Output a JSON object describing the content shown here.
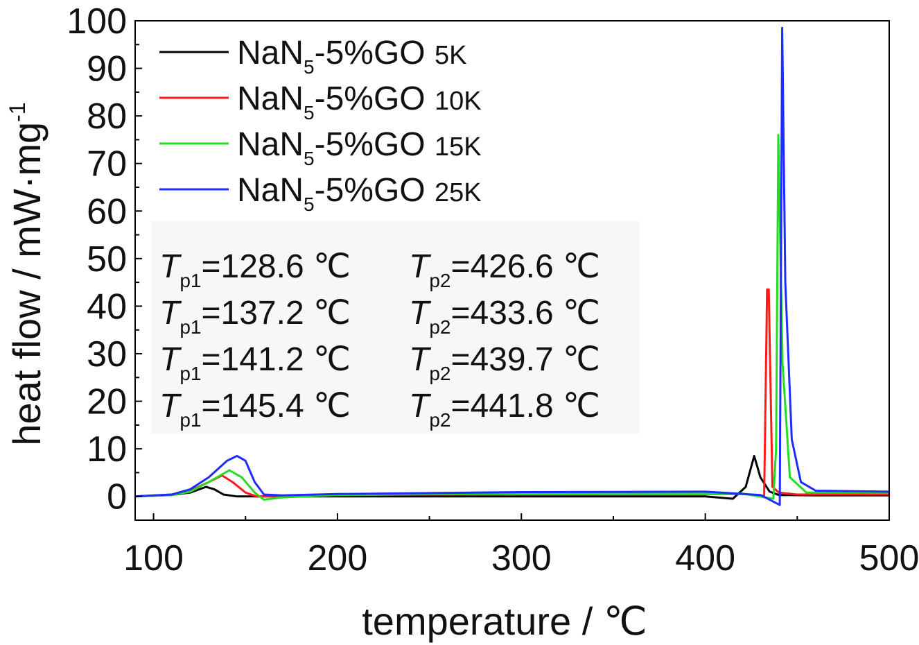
{
  "chart_data": {
    "type": "line",
    "title": "",
    "xlabel": "temperature / ℃",
    "ylabel_main": "heat flow / mW·mg",
    "ylabel_sup": "-1",
    "xlim": [
      90,
      500
    ],
    "ylim": [
      -5,
      100
    ],
    "xticks": [
      100,
      200,
      300,
      400,
      500
    ],
    "yticks": [
      0,
      10,
      20,
      30,
      40,
      50,
      60,
      70,
      80,
      90,
      100
    ],
    "grid": false,
    "legend_position": "top-left",
    "series": [
      {
        "name": "NaN5-5%GO 5K",
        "legend_base": "NaN",
        "legend_sub": "5",
        "legend_rest": "-5%GO",
        "legend_rate": "5K",
        "color": "#000000",
        "x": [
          90,
          110,
          120,
          128.6,
          133,
          138,
          145,
          160,
          200,
          300,
          400,
          415,
          422,
          426.6,
          430,
          435,
          440,
          460,
          500
        ],
        "y": [
          0,
          0.3,
          0.8,
          2.0,
          1.5,
          0.4,
          0,
          0,
          0,
          0,
          0,
          -0.5,
          2.0,
          8.5,
          4.0,
          1.0,
          0.3,
          0.2,
          0.2
        ]
      },
      {
        "name": "NaN5-5%GO 10K",
        "legend_base": "NaN",
        "legend_sub": "5",
        "legend_rest": "-5%GO",
        "legend_rate": "10K",
        "color": "#ff1a1a",
        "x": [
          90,
          110,
          120,
          130,
          137.2,
          143,
          150,
          156,
          170,
          200,
          300,
          420,
          432,
          433.6,
          434.5,
          436.5,
          440,
          450,
          500
        ],
        "y": [
          0,
          0.4,
          1.2,
          3.0,
          4.4,
          3.0,
          0.8,
          0,
          0.1,
          0.3,
          0.5,
          0.5,
          0.1,
          43.5,
          43.5,
          2.0,
          0.8,
          0.4,
          0.4
        ]
      },
      {
        "name": "NaN5-5%GO 15K",
        "legend_base": "NaN",
        "legend_sub": "5",
        "legend_rest": "-5%GO",
        "legend_rate": "15K",
        "color": "#22dd22",
        "x": [
          90,
          110,
          120,
          130,
          141.2,
          148,
          155,
          160,
          170,
          200,
          300,
          420,
          437,
          438.5,
          439.7,
          442,
          446,
          455,
          500
        ],
        "y": [
          0,
          0.3,
          1.0,
          3.0,
          5.5,
          4.0,
          0.8,
          -0.7,
          -0.2,
          0.3,
          0.6,
          0.6,
          -0.5,
          10.0,
          76.0,
          28.0,
          4.0,
          0.8,
          0.8
        ]
      },
      {
        "name": "NaN5-5%GO 25K",
        "legend_base": "NaN",
        "legend_sub": "5",
        "legend_rest": "-5%GO",
        "legend_rate": "25K",
        "color": "#1f2cff",
        "x": [
          90,
          110,
          120,
          130,
          140,
          145.4,
          150,
          155,
          160,
          170,
          200,
          300,
          400,
          430,
          440.5,
          441.8,
          443.5,
          447,
          452,
          460,
          500
        ],
        "y": [
          0,
          0.4,
          1.5,
          4.0,
          7.5,
          8.5,
          7.5,
          3.0,
          0.4,
          0.2,
          0.5,
          0.9,
          1.0,
          0.3,
          -1.8,
          98.5,
          45.0,
          12.0,
          3.0,
          1.2,
          1.0
        ]
      }
    ],
    "annotations": {
      "col1": [
        {
          "label": "T",
          "sub": "p1",
          "value": "=128.6 ℃"
        },
        {
          "label": "T",
          "sub": "p1",
          "value": "=137.2 ℃"
        },
        {
          "label": "T",
          "sub": "p1",
          "value": "=141.2 ℃"
        },
        {
          "label": "T",
          "sub": "p1",
          "value": "=145.4 ℃"
        }
      ],
      "col2": [
        {
          "label": "T",
          "sub": "p2",
          "value": "=426.6 ℃"
        },
        {
          "label": "T",
          "sub": "p2",
          "value": "=433.6 ℃"
        },
        {
          "label": "T",
          "sub": "p2",
          "value": "=439.7 ℃"
        },
        {
          "label": "T",
          "sub": "p2",
          "value": "=441.8 ℃"
        }
      ]
    }
  }
}
